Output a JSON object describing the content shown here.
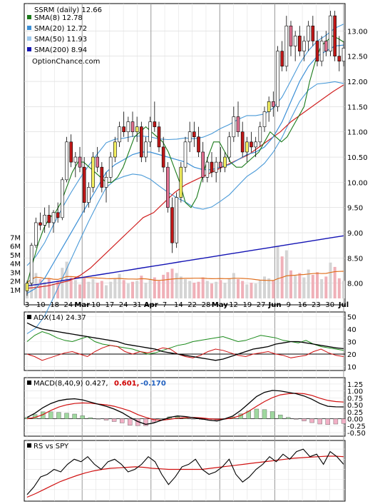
{
  "chart_data": [
    {
      "type": "candlestick",
      "title": "SSRM (daily) 12.66",
      "watermark": "OptionChance.com",
      "legend": [
        {
          "label": "SMA(8) 12.78",
          "color": "#1a7a1a"
        },
        {
          "label": "SMA(20) 12.72",
          "color": "#3b8fd6"
        },
        {
          "label": "SMA(50) 11.93",
          "color": "#9cc7ec"
        },
        {
          "label": "SMA(200) 8.94",
          "color": "#1414b4"
        }
      ],
      "legend_position": "top-left",
      "y_ticks": [
        "13.00",
        "12.50",
        "12.00",
        "11.50",
        "11.00",
        "10.50",
        "10.00",
        "9.50",
        "9.00",
        "8.50",
        "8.00"
      ],
      "ylim": [
        7.6,
        13.5
      ],
      "volume_ticks": [
        "7M",
        "6M",
        "5M",
        "4M",
        "3M",
        "2M",
        "1M"
      ],
      "volume_lim": [
        0,
        8
      ],
      "x_ticks": [
        "3",
        "10",
        "18",
        "24",
        "Mar",
        "10",
        "17",
        "24",
        "31",
        "Apr",
        "7",
        "14",
        "22",
        "28",
        "May",
        "12",
        "19",
        "27",
        "Jun",
        "9",
        "16",
        "23",
        "30",
        "Jul"
      ],
      "candles_ohlc": [
        [
          7.85,
          8.05,
          7.75,
          8.0
        ],
        [
          8.0,
          8.8,
          7.95,
          8.75
        ],
        [
          8.75,
          9.3,
          8.7,
          9.2
        ],
        [
          9.2,
          9.4,
          9.05,
          9.15
        ],
        [
          9.15,
          9.5,
          9.0,
          9.35
        ],
        [
          9.35,
          9.55,
          9.1,
          9.2
        ],
        [
          9.2,
          9.45,
          9.0,
          9.4
        ],
        [
          9.4,
          9.6,
          9.2,
          9.3
        ],
        [
          9.3,
          10.1,
          9.25,
          10.05
        ],
        [
          10.05,
          10.9,
          10.0,
          10.8
        ],
        [
          10.8,
          10.95,
          10.3,
          10.4
        ],
        [
          10.4,
          10.6,
          10.1,
          10.5
        ],
        [
          10.5,
          10.7,
          10.2,
          10.3
        ],
        [
          10.3,
          10.5,
          9.4,
          9.6
        ],
        [
          9.6,
          10.0,
          9.5,
          9.9
        ],
        [
          9.9,
          10.6,
          9.8,
          10.5
        ],
        [
          10.5,
          10.7,
          10.2,
          10.3
        ],
        [
          10.3,
          10.4,
          9.8,
          9.9
        ],
        [
          9.9,
          10.2,
          9.6,
          10.1
        ],
        [
          10.1,
          10.6,
          10.0,
          10.5
        ],
        [
          10.5,
          10.9,
          10.4,
          10.8
        ],
        [
          10.8,
          11.2,
          10.7,
          11.1
        ],
        [
          11.1,
          11.4,
          10.9,
          11.0
        ],
        [
          11.0,
          11.3,
          10.8,
          11.2
        ],
        [
          11.2,
          11.4,
          10.9,
          11.0
        ],
        [
          11.0,
          11.3,
          10.8,
          11.1
        ],
        [
          11.1,
          11.2,
          10.4,
          10.5
        ],
        [
          10.5,
          10.9,
          10.4,
          10.8
        ],
        [
          10.8,
          11.3,
          10.7,
          11.2
        ],
        [
          11.2,
          11.6,
          11.0,
          11.1
        ],
        [
          11.1,
          11.2,
          10.6,
          10.7
        ],
        [
          10.7,
          10.9,
          10.2,
          10.3
        ],
        [
          10.3,
          10.4,
          9.4,
          9.5
        ],
        [
          9.5,
          9.7,
          8.6,
          8.8
        ],
        [
          8.8,
          9.8,
          8.7,
          9.7
        ],
        [
          9.7,
          10.4,
          9.6,
          10.3
        ],
        [
          10.3,
          10.9,
          10.2,
          10.8
        ],
        [
          10.8,
          11.2,
          10.6,
          11.0
        ],
        [
          11.0,
          11.2,
          10.7,
          10.9
        ],
        [
          10.9,
          11.1,
          10.5,
          10.6
        ],
        [
          10.6,
          10.8,
          10.0,
          10.1
        ],
        [
          10.1,
          10.5,
          10.0,
          10.4
        ],
        [
          10.4,
          10.6,
          10.1,
          10.2
        ],
        [
          10.2,
          10.5,
          10.0,
          10.4
        ],
        [
          10.4,
          10.7,
          10.2,
          10.3
        ],
        [
          10.3,
          10.6,
          10.2,
          10.5
        ],
        [
          10.5,
          11.0,
          10.4,
          10.9
        ],
        [
          10.9,
          11.5,
          10.8,
          11.3
        ],
        [
          11.3,
          11.6,
          10.9,
          11.0
        ],
        [
          11.0,
          11.2,
          10.5,
          10.6
        ],
        [
          10.6,
          10.9,
          10.4,
          10.8
        ],
        [
          10.8,
          11.0,
          10.6,
          10.7
        ],
        [
          10.7,
          10.9,
          10.5,
          10.8
        ],
        [
          10.8,
          11.2,
          10.7,
          11.1
        ],
        [
          11.1,
          11.5,
          11.0,
          11.4
        ],
        [
          11.4,
          11.7,
          11.2,
          11.6
        ],
        [
          11.6,
          11.8,
          11.3,
          11.5
        ],
        [
          11.5,
          12.7,
          11.4,
          12.6
        ],
        [
          12.6,
          12.8,
          12.2,
          12.3
        ],
        [
          12.3,
          13.3,
          12.2,
          13.1
        ],
        [
          13.1,
          13.2,
          12.5,
          12.7
        ],
        [
          12.7,
          13.0,
          12.4,
          12.9
        ],
        [
          12.9,
          13.1,
          12.5,
          12.6
        ],
        [
          12.6,
          12.9,
          12.4,
          12.8
        ],
        [
          12.8,
          13.2,
          12.6,
          13.1
        ],
        [
          13.1,
          13.3,
          12.7,
          12.8
        ],
        [
          12.8,
          13.0,
          12.3,
          12.4
        ],
        [
          12.4,
          12.9,
          12.3,
          12.8
        ],
        [
          12.8,
          13.0,
          12.5,
          12.6
        ],
        [
          12.6,
          13.4,
          12.5,
          13.3
        ],
        [
          13.3,
          13.4,
          12.4,
          12.5
        ],
        [
          12.5,
          12.9,
          12.2,
          12.4
        ],
        [
          12.4,
          12.8,
          12.3,
          12.66
        ]
      ],
      "volume_millions": [
        1.8,
        2.6,
        2.9,
        2.2,
        1.9,
        2.3,
        1.7,
        2.0,
        3.5,
        4.2,
        2.4,
        2.1,
        1.6,
        2.5,
        1.9,
        2.2,
        1.8,
        2.0,
        1.5,
        1.9,
        2.3,
        2.8,
        2.1,
        1.7,
        1.9,
        2.0,
        2.6,
        1.8,
        2.2,
        2.4,
        2.0,
        2.7,
        3.0,
        3.4,
        2.9,
        2.5,
        2.2,
        2.0,
        1.8,
        1.9,
        2.4,
        2.0,
        1.7,
        1.9,
        2.1,
        1.8,
        2.3,
        2.9,
        2.2,
        2.0,
        1.6,
        1.8,
        1.7,
        2.1,
        2.5,
        2.3,
        2.0,
        6.0,
        4.8,
        5.5,
        3.2,
        2.6,
        2.9,
        2.4,
        3.3,
        2.7,
        3.0,
        2.2,
        2.5,
        4.1,
        3.6,
        2.3,
        2.0
      ],
      "sma200": [
        7.95,
        7.98,
        8.02,
        8.06,
        8.1,
        8.14,
        8.18,
        8.22,
        8.26,
        8.3,
        8.34,
        8.38,
        8.42,
        8.46,
        8.5,
        8.54,
        8.58,
        8.62,
        8.66,
        8.7,
        8.74,
        8.78,
        8.82,
        8.86,
        8.9,
        8.94
      ],
      "sma50": [
        7.9,
        7.92,
        7.95,
        8.0,
        8.05,
        8.15,
        8.3,
        8.5,
        8.7,
        8.9,
        9.1,
        9.3,
        9.4,
        9.6,
        9.8,
        9.95,
        10.05,
        10.15,
        10.25,
        10.35,
        10.45,
        10.55,
        10.7,
        10.85,
        11.0,
        11.2,
        11.35,
        11.5,
        11.65,
        11.8,
        11.93
      ],
      "sma20": [
        7.8,
        7.9,
        8.1,
        8.4,
        8.7,
        9.0,
        9.3,
        9.6,
        9.9,
        10.2,
        10.35,
        10.45,
        10.55,
        10.6,
        10.6,
        10.55,
        10.5,
        10.45,
        10.4,
        10.3,
        10.25,
        10.25,
        10.3,
        10.35,
        10.45,
        10.55,
        10.6,
        10.7,
        10.9,
        11.2,
        11.6,
        12.0,
        12.3,
        12.5,
        12.6,
        12.7,
        12.72
      ],
      "sma8": [
        8.0,
        8.4,
        8.8,
        9.1,
        9.3,
        9.4,
        9.6,
        9.9,
        10.2,
        10.4,
        10.4,
        10.3,
        10.2,
        10.1,
        10.0,
        10.0,
        10.1,
        10.3,
        10.6,
        10.9,
        11.0,
        11.1,
        11.0,
        10.9,
        10.8,
        10.6,
        10.3,
        10.0,
        9.6,
        9.5,
        9.7,
        10.1,
        10.5,
        10.8,
        10.8,
        10.6,
        10.4,
        10.3,
        10.3,
        10.4,
        10.5,
        10.6,
        10.8,
        11.0,
        10.9,
        10.8,
        10.9,
        11.1,
        11.3,
        11.5,
        12.0,
        12.4,
        12.7,
        12.8,
        12.9,
        12.85,
        12.78
      ]
    },
    {
      "type": "line",
      "title": "ADX(14) 24.37",
      "y_ticks": [
        "50",
        "40",
        "30",
        "20",
        "10"
      ],
      "ylim": [
        8,
        52
      ],
      "reference_line": 20,
      "adx": [
        45,
        42,
        40,
        39,
        38,
        37,
        36,
        35,
        34,
        33,
        32,
        31,
        30,
        28,
        27,
        26,
        25,
        24,
        22,
        21,
        20,
        19,
        18,
        17,
        16,
        15,
        16,
        18,
        20,
        22,
        24,
        25,
        26,
        28,
        29,
        30,
        30,
        29,
        28,
        27,
        26,
        25,
        24.37
      ],
      "plus_di": [
        30,
        35,
        38,
        36,
        33,
        31,
        30,
        32,
        34,
        30,
        28,
        27,
        26,
        25,
        24,
        22,
        20,
        21,
        23,
        25,
        27,
        28,
        30,
        31,
        32,
        33,
        34,
        32,
        30,
        31,
        33,
        35,
        34,
        33,
        31,
        30,
        29,
        31,
        28,
        26,
        25,
        24,
        23
      ],
      "minus_di": [
        20,
        18,
        15,
        17,
        19,
        21,
        22,
        20,
        18,
        22,
        25,
        27,
        26,
        22,
        20,
        22,
        21,
        23,
        25,
        24,
        20,
        18,
        17,
        19,
        22,
        24,
        23,
        21,
        19,
        18,
        20,
        21,
        22,
        20,
        19,
        17,
        18,
        19,
        22,
        24,
        21,
        19,
        18
      ]
    },
    {
      "type": "line",
      "title": "MACD(8,40,9) 0.427, 0.601, -0.170",
      "labels": [
        "MACD(8,40,9) 0.427,",
        "0.601,",
        "-0.170"
      ],
      "y_ticks": [
        "1.25",
        "1.00",
        "0.75",
        "0.50",
        "0.25",
        "0.00",
        "-0.25",
        "-0.50"
      ],
      "ylim": [
        -0.6,
        1.35
      ],
      "macd": [
        0.05,
        0.2,
        0.4,
        0.55,
        0.65,
        0.7,
        0.72,
        0.68,
        0.6,
        0.52,
        0.45,
        0.35,
        0.22,
        0.05,
        -0.1,
        -0.2,
        -0.15,
        -0.05,
        0.05,
        0.1,
        0.08,
        0.04,
        0.0,
        -0.05,
        -0.08,
        0.0,
        0.1,
        0.3,
        0.55,
        0.8,
        0.95,
        1.02,
        1.0,
        0.95,
        0.9,
        0.82,
        0.7,
        0.55,
        0.45,
        0.43,
        0.427
      ],
      "signal": [
        0.0,
        0.05,
        0.15,
        0.3,
        0.42,
        0.5,
        0.55,
        0.57,
        0.56,
        0.53,
        0.5,
        0.45,
        0.37,
        0.28,
        0.15,
        0.05,
        -0.03,
        -0.05,
        -0.02,
        0.02,
        0.04,
        0.05,
        0.03,
        0.0,
        -0.02,
        -0.01,
        0.03,
        0.12,
        0.27,
        0.45,
        0.62,
        0.76,
        0.86,
        0.9,
        0.92,
        0.9,
        0.84,
        0.74,
        0.66,
        0.62,
        0.601
      ],
      "histogram": [
        0.05,
        0.15,
        0.25,
        0.25,
        0.23,
        0.2,
        0.17,
        0.11,
        0.04,
        -0.01,
        -0.05,
        -0.1,
        -0.15,
        -0.23,
        -0.25,
        -0.25,
        -0.12,
        0.0,
        0.07,
        0.08,
        0.04,
        -0.01,
        -0.03,
        -0.05,
        -0.06,
        0.01,
        0.07,
        0.18,
        0.28,
        0.35,
        0.33,
        0.26,
        0.14,
        0.05,
        -0.02,
        -0.08,
        -0.14,
        -0.19,
        -0.21,
        -0.19,
        -0.17
      ]
    },
    {
      "type": "line",
      "title": "RS vs SPY",
      "rs": [
        0.1,
        0.25,
        0.45,
        0.5,
        0.6,
        0.55,
        0.7,
        0.8,
        0.75,
        0.85,
        0.7,
        0.6,
        0.75,
        0.8,
        0.7,
        0.55,
        0.6,
        0.7,
        0.85,
        0.75,
        0.5,
        0.3,
        0.45,
        0.65,
        0.7,
        0.8,
        0.6,
        0.5,
        0.55,
        0.65,
        0.8,
        0.5,
        0.35,
        0.45,
        0.6,
        0.7,
        0.85,
        0.75,
        0.9,
        0.8,
        0.95,
        1.0,
        0.85,
        0.9,
        0.7,
        0.95,
        0.85,
        0.7
      ],
      "rs_avg": [
        0.05,
        0.12,
        0.2,
        0.28,
        0.36,
        0.42,
        0.48,
        0.53,
        0.57,
        0.6,
        0.62,
        0.63,
        0.64,
        0.65,
        0.64,
        0.62,
        0.61,
        0.6,
        0.6,
        0.6,
        0.6,
        0.6,
        0.62,
        0.64,
        0.66,
        0.68,
        0.7,
        0.72,
        0.74,
        0.76,
        0.78,
        0.8,
        0.82,
        0.83,
        0.84,
        0.85,
        0.86,
        0.86,
        0.85
      ]
    }
  ]
}
